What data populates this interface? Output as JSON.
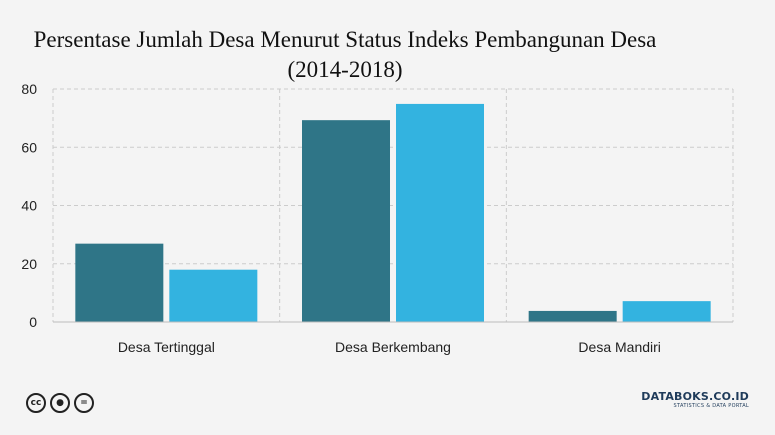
{
  "chart_data": {
    "type": "bar",
    "title": "Persentase Jumlah Desa Menurut Status Indeks Pembangunan Desa",
    "subtitle": "(2014-2018)",
    "categories": [
      "Desa Tertinggal",
      "Desa Berkembang",
      "Desa Mandiri"
    ],
    "series": [
      {
        "values": [
          26.9,
          69.3,
          3.8
        ],
        "color": "#2f7587"
      },
      {
        "values": [
          17.96,
          74.88,
          7.16
        ],
        "color": "#33b3e0"
      }
    ],
    "ylim": [
      0,
      80
    ],
    "yticks": [
      0,
      20,
      40,
      60,
      80
    ],
    "grid": true
  },
  "footer": {
    "license_icons": [
      "creative-commons-icon",
      "attribution-icon",
      "no-derivatives-icon"
    ],
    "brand": "DATABOKS.CO.ID",
    "brand_tagline": "STATISTICS & DATA PORTAL"
  }
}
